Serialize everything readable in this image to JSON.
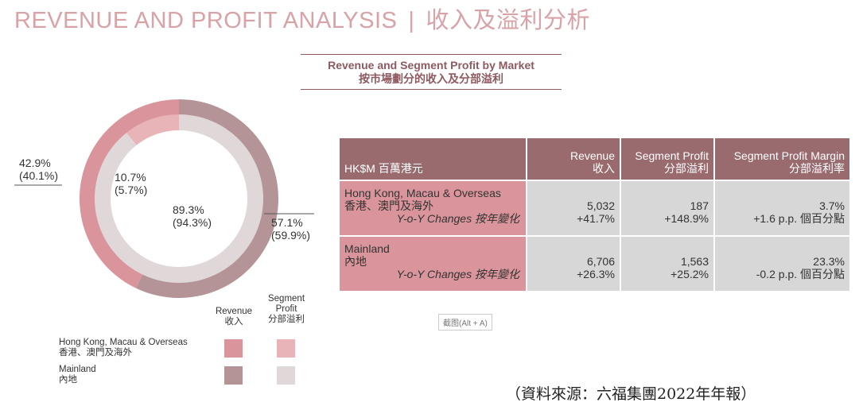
{
  "header": {
    "title_en": "REVENUE AND PROFIT ANALYSIS",
    "separator": "|",
    "title_zh": "收入及溢利分析"
  },
  "chart_title": {
    "en": "Revenue and Segment Profit by Market",
    "zh": "按市場劃分的收入及分部溢利"
  },
  "chart_data": {
    "type": "pie",
    "subtype": "double-donut",
    "categories": [
      "Hong Kong, Macau & Overseas 香港、澳門及海外",
      "Mainland 內地"
    ],
    "series": [
      {
        "name": "Revenue 收入",
        "ring": "outer",
        "values": [
          42.9,
          57.1
        ],
        "prior_year": [
          40.1,
          59.9
        ]
      },
      {
        "name": "Segment Profit 分部溢利",
        "ring": "inner",
        "values": [
          10.7,
          89.3
        ],
        "prior_year": [
          5.7,
          94.3
        ]
      }
    ],
    "labels": {
      "outer_hk": {
        "current": "42.9%",
        "prior": "(40.1%)"
      },
      "outer_ml": {
        "current": "57.1%",
        "prior": "(59.9%)"
      },
      "inner_hk": {
        "current": "10.7%",
        "prior": "(5.7%)"
      },
      "inner_ml": {
        "current": "89.3%",
        "prior": "(94.3%)"
      }
    },
    "colors": {
      "revenue_hk": "#d9959b",
      "revenue_ml": "#b49496",
      "profit_hk": "#e8b4b8",
      "profit_ml": "#e0d8d8"
    },
    "legend_position": "bottom-left"
  },
  "legend": {
    "revenue_header": [
      "Revenue",
      "收入"
    ],
    "profit_header": [
      "Segment",
      "Profit",
      "分部溢利"
    ],
    "hk": [
      "Hong Kong, Macau & Overseas",
      "香港、澳門及海外"
    ],
    "ml": [
      "Mainland",
      "內地"
    ]
  },
  "table": {
    "headers": {
      "unit": "HK$M 百萬港元",
      "revenue": [
        "Revenue",
        "收入"
      ],
      "profit": [
        "Segment Profit",
        "分部溢利"
      ],
      "margin": [
        "Segment Profit Margin",
        "分部溢利率"
      ]
    },
    "yoy_label": "Y-o-Y Changes 按年變化",
    "rows": [
      {
        "name_en": "Hong Kong, Macau & Overseas",
        "name_zh": "香港、澳門及海外",
        "revenue": "5,032",
        "revenue_yoy": "+41.7%",
        "profit": "187",
        "profit_yoy": "+148.9%",
        "margin": "3.7%",
        "margin_yoy": "+1.6 p.p. 個百分點"
      },
      {
        "name_en": "Mainland",
        "name_zh": "內地",
        "revenue": "6,706",
        "revenue_yoy": "+26.3%",
        "profit": "1,563",
        "profit_yoy": "+25.2%",
        "margin": "23.3%",
        "margin_yoy": "-0.2 p.p. 個百分點"
      }
    ]
  },
  "tooltip": "截图(Alt + A)",
  "source": "（資料來源：六福集團2022年年報）"
}
